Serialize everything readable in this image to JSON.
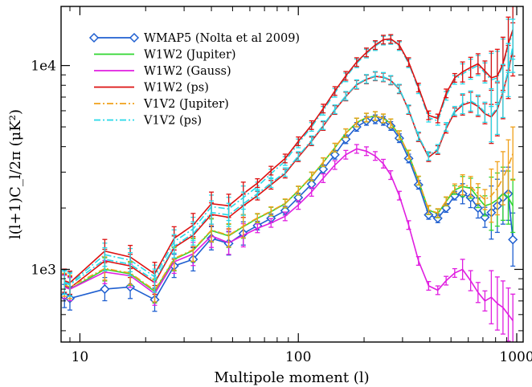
{
  "chart_data": {
    "type": "line",
    "xlabel": "Multipole moment (l)",
    "ylabel": "l(l+1)C_l/2π (μK²)",
    "xscale": "log",
    "yscale": "log",
    "xlim": [
      8.2,
      1070
    ],
    "ylim": [
      440,
      19500
    ],
    "xticks": [
      {
        "value": 10,
        "label": "10"
      },
      {
        "value": 100,
        "label": "100"
      },
      {
        "value": 1000,
        "label": "1000"
      }
    ],
    "yticks": [
      {
        "value": 1000,
        "label": "1e3"
      },
      {
        "value": 10000,
        "label": "1e4"
      }
    ],
    "legend_position": "top-left",
    "grid": false,
    "x": [
      8.5,
      9,
      13,
      17,
      22,
      27,
      33,
      40,
      48,
      56,
      65,
      75,
      87,
      100,
      115,
      130,
      147,
      165,
      185,
      205,
      225,
      245,
      265,
      290,
      320,
      355,
      395,
      435,
      475,
      520,
      565,
      615,
      665,
      715,
      765,
      815,
      865,
      915,
      960
    ],
    "series": [
      {
        "name": "WMAP5 (Nolta et al 2009)",
        "color": "#1f5fd0",
        "style": "solid-diamond",
        "values": [
          740,
          720,
          800,
          820,
          710,
          1040,
          1120,
          1420,
          1340,
          1500,
          1640,
          1780,
          1940,
          2250,
          2620,
          3100,
          3650,
          4350,
          5000,
          5350,
          5450,
          5350,
          5050,
          4400,
          3500,
          2600,
          1850,
          1780,
          2000,
          2300,
          2350,
          2250,
          2000,
          1800,
          1900,
          2050,
          2250,
          2350,
          1400
        ]
      },
      {
        "name": "W1W2 (Jupiter)",
        "color": "#2fd62f",
        "style": "solid",
        "values": [
          820,
          800,
          1000,
          950,
          780,
          1120,
          1240,
          1550,
          1460,
          1620,
          1780,
          1920,
          2100,
          2430,
          2850,
          3350,
          3950,
          4650,
          5250,
          5550,
          5650,
          5500,
          5200,
          4550,
          3650,
          2720,
          1950,
          1880,
          2150,
          2450,
          2550,
          2500,
          2250,
          2050,
          2100,
          2200,
          2350,
          2250,
          2050
        ]
      },
      {
        "name": "W1W2 (Gauss)",
        "color": "#e01ee0",
        "style": "solid",
        "values": [
          820,
          800,
          970,
          930,
          760,
          1090,
          1190,
          1460,
          1350,
          1470,
          1590,
          1690,
          1820,
          2070,
          2400,
          2800,
          3250,
          3650,
          3900,
          3800,
          3600,
          3300,
          2900,
          2300,
          1650,
          1100,
          830,
          790,
          880,
          960,
          1000,
          880,
          770,
          700,
          730,
          680,
          650,
          600,
          560
        ]
      },
      {
        "name": "W1W2 (ps)",
        "color": "#dd1111",
        "style": "solid",
        "values": [
          880,
          860,
          1230,
          1150,
          950,
          1420,
          1650,
          2100,
          2050,
          2350,
          2650,
          3050,
          3500,
          4250,
          5100,
          6150,
          7500,
          8900,
          10400,
          11600,
          12600,
          13400,
          13500,
          12600,
          10400,
          7800,
          5700,
          5500,
          7300,
          8700,
          9300,
          9800,
          10200,
          9400,
          8700,
          8900,
          10200,
          12800,
          15000
        ]
      },
      {
        "name": "V1V2 (Jupiter)",
        "color": "#f0a01a",
        "style": "dash-dot",
        "values": [
          840,
          820,
          1010,
          960,
          790,
          1130,
          1250,
          1560,
          1470,
          1630,
          1790,
          1930,
          2110,
          2440,
          2860,
          3360,
          3960,
          4660,
          5260,
          5560,
          5660,
          5510,
          5210,
          4560,
          3660,
          2730,
          1960,
          1890,
          2160,
          2500,
          2600,
          2550,
          2350,
          2200,
          2300,
          2500,
          2800,
          3200,
          3700
        ]
      },
      {
        "name": "V1V2 (ps)",
        "color": "#26d8e8",
        "style": "dash-dot",
        "values": [
          860,
          840,
          1120,
          1060,
          880,
          1300,
          1500,
          1900,
          1850,
          2100,
          2350,
          2650,
          3000,
          3600,
          4300,
          5100,
          6100,
          7100,
          8100,
          8600,
          8900,
          8800,
          8500,
          7700,
          6100,
          4500,
          3600,
          3900,
          5000,
          6000,
          6500,
          6700,
          6400,
          5900,
          5700,
          6200,
          7500,
          9500,
          12500
        ]
      }
    ],
    "extra_ps_band": {
      "color": "#26d8e8",
      "values": [
        870,
        850,
        1180,
        1110,
        920,
        1370,
        1580,
        2030,
        1980,
        2250,
        2550,
        2950,
        3400,
        4150,
        5000,
        6000,
        7350,
        8750,
        10250,
        11450,
        12450,
        13250,
        13350,
        12450,
        10250,
        7650,
        5550,
        5350,
        7100,
        8500,
        9100,
        9600,
        10000,
        9200,
        8500,
        8700,
        10000,
        12500,
        14500
      ]
    },
    "extra_w_band": {
      "color": "#dd1111",
      "values": [
        830,
        810,
        1100,
        1040,
        860,
        1280,
        1470,
        1860,
        1800,
        2050,
        2300,
        2600,
        2950,
        3550,
        4250,
        5050,
        6050,
        7050,
        8050,
        8550,
        8850,
        8750,
        8450,
        7650,
        6050,
        4450,
        3550,
        3850,
        4900,
        5900,
        6400,
        6600,
        6300,
        5800,
        5600,
        6100,
        7400,
        9300,
        12000
      ]
    }
  }
}
